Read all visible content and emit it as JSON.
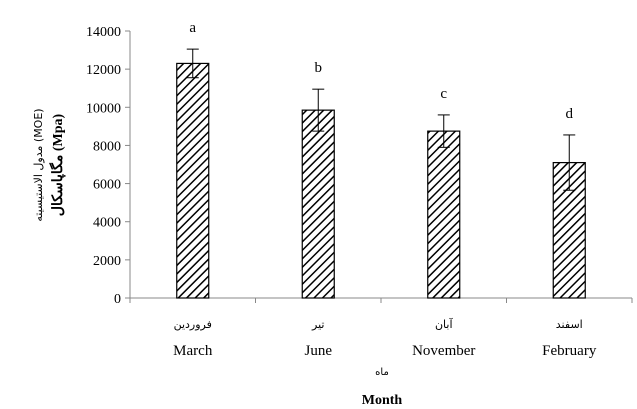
{
  "chart_data": {
    "type": "bar",
    "categories": [
      {
        "fa": "فروردین",
        "en": "March"
      },
      {
        "fa": "تیر",
        "en": "June"
      },
      {
        "fa": "آبان",
        "en": "November"
      },
      {
        "fa": "اسفند",
        "en": "February"
      }
    ],
    "values": [
      12300,
      9850,
      8750,
      7100
    ],
    "errors": [
      750,
      1100,
      850,
      1450
    ],
    "letters": [
      "a",
      "b",
      "c",
      "d"
    ],
    "ylim": [
      0,
      14000
    ],
    "yticks": [
      0,
      2000,
      4000,
      6000,
      8000,
      10000,
      12000,
      14000
    ],
    "ytick_labels": [
      "0",
      "2000",
      "4000",
      "6000",
      "8000",
      "10000",
      "12000",
      "14000"
    ],
    "xlabel_fa": "ماه",
    "xlabel_en": "Month",
    "ylabel_fa": "مدول الاستیسیته (MOE)",
    "ylabel_en": "مگاپاسکال (Mpa)",
    "grid": false,
    "legend": "none",
    "bar_fill": "hatched",
    "bar_color": "#000000"
  }
}
